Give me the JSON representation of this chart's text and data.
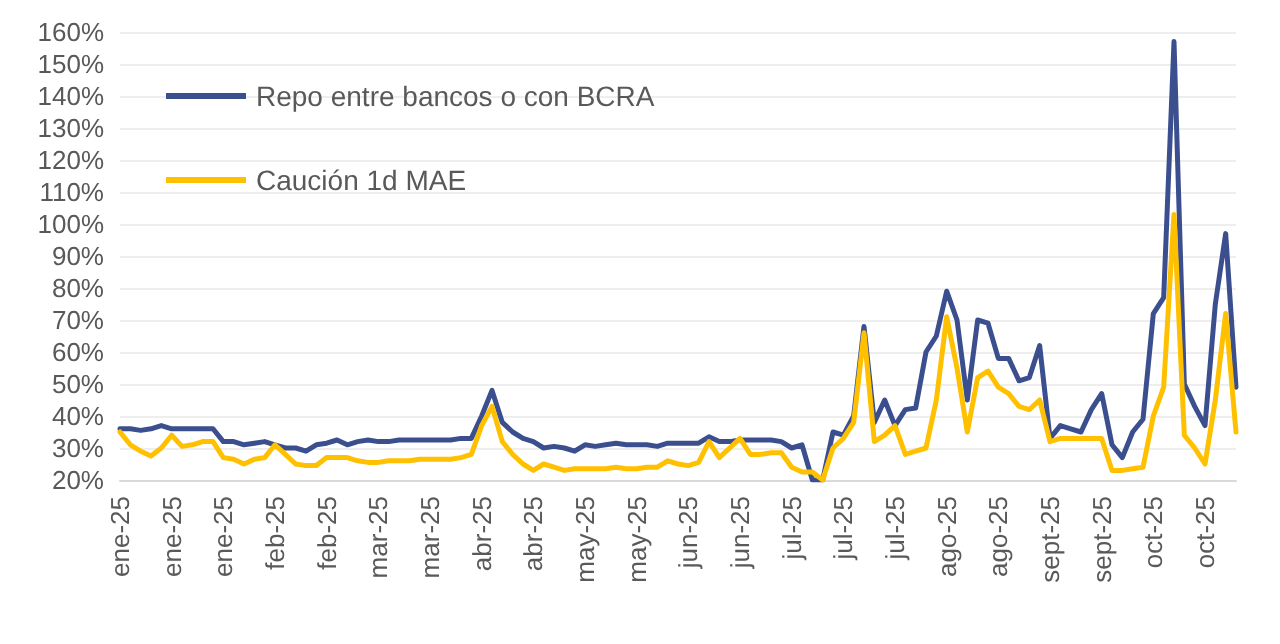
{
  "chart_data": {
    "type": "line",
    "categories": [
      "ene-25",
      null,
      null,
      null,
      null,
      "ene-25",
      null,
      null,
      null,
      null,
      "ene-25",
      null,
      null,
      null,
      null,
      "feb-25",
      null,
      null,
      null,
      null,
      "feb-25",
      null,
      null,
      null,
      null,
      "mar-25",
      null,
      null,
      null,
      null,
      "mar-25",
      null,
      null,
      null,
      null,
      "abr-25",
      null,
      null,
      null,
      null,
      "abr-25",
      null,
      null,
      null,
      null,
      "may-25",
      null,
      null,
      null,
      null,
      "may-25",
      null,
      null,
      null,
      null,
      "jun-25",
      null,
      null,
      null,
      null,
      "jun-25",
      null,
      null,
      null,
      null,
      "jul-25",
      null,
      null,
      null,
      null,
      "jul-25",
      null,
      null,
      null,
      null,
      "jul-25",
      null,
      null,
      null,
      null,
      "ago-25",
      null,
      null,
      null,
      null,
      "ago-25",
      null,
      null,
      null,
      null,
      "sept-25",
      null,
      null,
      null,
      null,
      "sept-25",
      null,
      null,
      null,
      null,
      "oct-25",
      null,
      null,
      null,
      null,
      "oct-25",
      null,
      null,
      null
    ],
    "series": [
      {
        "name": "Repo entre bancos o con BCRA",
        "color": "#3b4f8f",
        "values": [
          36,
          36,
          35.5,
          36,
          37,
          36,
          36,
          36,
          36,
          36,
          32,
          32,
          31,
          31.5,
          32,
          31,
          30,
          30,
          29,
          31,
          31.5,
          32.5,
          31,
          32,
          32.5,
          32,
          32,
          32.5,
          32.5,
          32.5,
          32.5,
          32.5,
          32.5,
          33,
          33,
          40,
          48,
          38,
          35,
          33,
          32,
          30,
          30.5,
          30,
          29,
          31,
          30.5,
          31,
          31.5,
          31,
          31,
          31,
          30.5,
          31.5,
          31.5,
          31.5,
          31.5,
          33.5,
          32,
          32,
          32.5,
          32.5,
          32.5,
          32.5,
          32,
          30,
          31,
          20,
          20,
          35,
          34,
          40,
          68,
          38,
          45,
          37,
          42,
          42.5,
          60,
          65,
          79,
          70,
          45,
          70,
          69,
          58,
          58,
          51,
          52,
          62,
          33,
          37,
          36,
          35,
          42,
          47,
          31,
          27,
          35,
          39,
          72,
          77,
          157,
          50,
          43,
          37,
          75,
          97,
          49
        ]
      },
      {
        "name": "Caución 1d MAE",
        "color": "#ffc000",
        "values": [
          35,
          31,
          29,
          27.5,
          30,
          34,
          30.5,
          31,
          32,
          32,
          27,
          26.5,
          25,
          26.5,
          27,
          31,
          28,
          25,
          24.5,
          24.5,
          27,
          27,
          27,
          26,
          25.5,
          25.5,
          26,
          26,
          26,
          26.5,
          26.5,
          26.5,
          26.5,
          27,
          28,
          37,
          43,
          32,
          28,
          25,
          23,
          25,
          24,
          23,
          23.5,
          23.5,
          23.5,
          23.5,
          24,
          23.5,
          23.5,
          24,
          24,
          26,
          25,
          24.5,
          25.5,
          32,
          27,
          30,
          33,
          28,
          28,
          28.5,
          28.5,
          24,
          22.5,
          22.5,
          20,
          30,
          33,
          38,
          66,
          32,
          34,
          37,
          28,
          29,
          30,
          45,
          71,
          55,
          35,
          52,
          54,
          49,
          47,
          43,
          42,
          45,
          32,
          33,
          33,
          33,
          33,
          33,
          23,
          23,
          23.5,
          24,
          40,
          49,
          103,
          34,
          30,
          25,
          45,
          72,
          35
        ]
      }
    ],
    "ylim": [
      20,
      160
    ],
    "yticks": [
      {
        "value": 20,
        "label": "20%"
      },
      {
        "value": 30,
        "label": "30%"
      },
      {
        "value": 40,
        "label": "40%"
      },
      {
        "value": 50,
        "label": "50%"
      },
      {
        "value": 60,
        "label": "60%"
      },
      {
        "value": 70,
        "label": "70%"
      },
      {
        "value": 80,
        "label": "80%"
      },
      {
        "value": 90,
        "label": "90%"
      },
      {
        "value": 100,
        "label": "100%"
      },
      {
        "value": 110,
        "label": "110%"
      },
      {
        "value": 120,
        "label": "120%"
      },
      {
        "value": 130,
        "label": "130%"
      },
      {
        "value": 140,
        "label": "140%"
      },
      {
        "value": 150,
        "label": "150%"
      },
      {
        "value": 160,
        "label": "160%"
      }
    ],
    "grid": "y",
    "legend": "top left",
    "marker": "none",
    "line_style": "solid"
  }
}
